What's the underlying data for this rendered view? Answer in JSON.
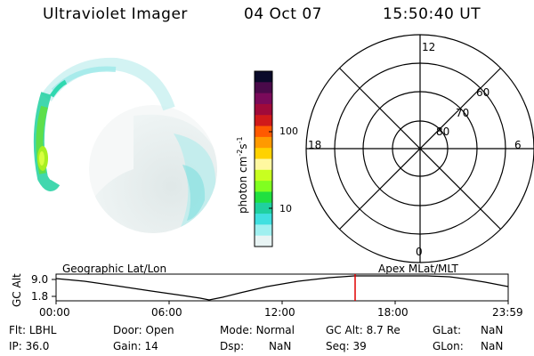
{
  "header": {
    "instrument": "Ultraviolet Imager",
    "date": "04 Oct 07",
    "time": "15:50:40 UT"
  },
  "colorbar": {
    "unit_label": "photon cm",
    "unit_exp1": "-2",
    "unit_mid": "s",
    "unit_exp2": "-1",
    "tick_100": "100",
    "tick_10": "10",
    "colors": [
      "#0a0a2a",
      "#4a0a4a",
      "#7a0a5a",
      "#a00a3a",
      "#d01a1a",
      "#ff5a00",
      "#ff9a00",
      "#ffd200",
      "#fff8a0",
      "#c8ff20",
      "#80ff20",
      "#20e040",
      "#20d0a0",
      "#40e0e0",
      "#a0f0f0",
      "#e8f4f4"
    ]
  },
  "polar_plot": {
    "mlt_top": "12",
    "mlt_left": "18",
    "mlt_right": "6",
    "mlt_bottom": "0",
    "lat_60": "60",
    "lat_70": "70",
    "lat_80": "80"
  },
  "timeline": {
    "left_label": "Geographic Lat/Lon",
    "right_label": "Apex  MLat/MLT",
    "axis_title": "GC Alt",
    "y_max": "9.0",
    "y_min": "1.8",
    "x_ticks": [
      "00:00",
      "06:00",
      "12:00",
      "18:00",
      "23:59"
    ],
    "current_marker_color": "#e00000"
  },
  "status": {
    "flt_label": "Flt:",
    "flt_value": "LBHL",
    "door_label": "Door:",
    "door_value": "Open",
    "mode_label": "Mode:",
    "mode_value": "Normal",
    "gcalt_label": "GC Alt:",
    "gcalt_value": "8.7 Re",
    "glat_label": "GLat:",
    "glat_value": "NaN",
    "ip_label": "IP:",
    "ip_value": "36.0",
    "gain_label": "Gain:",
    "gain_value": "14",
    "dsp_label": "Dsp:",
    "dsp_value": "NaN",
    "seq_label": "Seq:",
    "seq_value": "39",
    "glon_label": "GLon:",
    "glon_value": "NaN"
  }
}
